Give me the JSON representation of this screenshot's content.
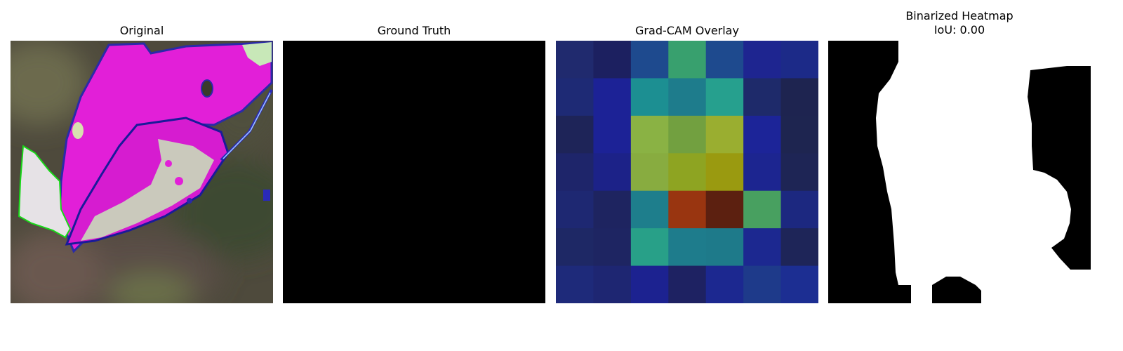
{
  "panels": [
    {
      "title": "Original"
    },
    {
      "title": "Ground Truth"
    },
    {
      "title": "Grad-CAM Overlay"
    },
    {
      "title": "Binarized Heatmap\nIoU: 0.00"
    }
  ],
  "gradcam_grid": [
    [
      "#202a6e",
      "#1c2060",
      "#1e4a8e",
      "#38a06e",
      "#1e4a8e",
      "#1e2590",
      "#1c2a88"
    ],
    [
      "#1e2a75",
      "#1c2296",
      "#1c8f92",
      "#1e7c8c",
      "#26a08e",
      "#1e2a6a",
      "#1e2450"
    ],
    [
      "#1e2458",
      "#1c2296",
      "#8ab244",
      "#72a040",
      "#9aae30",
      "#1c2498",
      "#1e2550"
    ],
    [
      "#1e256a",
      "#1c2288",
      "#88ac40",
      "#8ea422",
      "#9a9a10",
      "#1c2590",
      "#1e2555"
    ],
    [
      "#1e2872",
      "#1e2460",
      "#1e7e8c",
      "#993510",
      "#5c2010",
      "#48a060",
      "#1c2880"
    ],
    [
      "#1e2865",
      "#1e2562",
      "#28a088",
      "#1e7c8c",
      "#1e7a8a",
      "#1c2890",
      "#1e2558"
    ],
    [
      "#1e2a7a",
      "#1e2672",
      "#1c2290",
      "#1e2262",
      "#1c2890",
      "#1e3a8a",
      "#1c2e92"
    ]
  ]
}
